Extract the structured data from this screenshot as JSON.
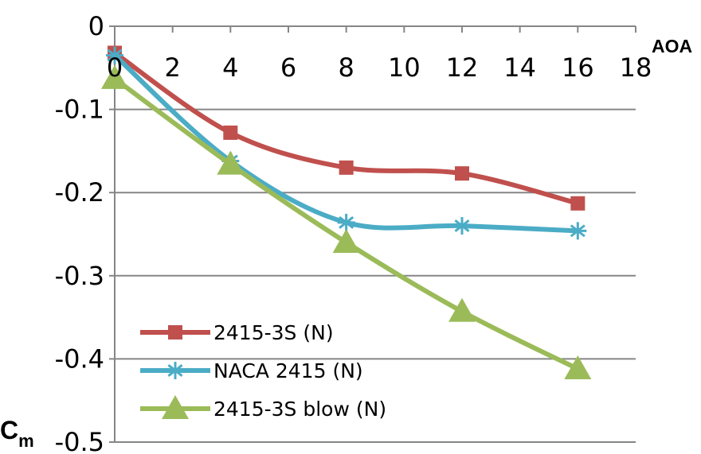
{
  "chart_data": {
    "type": "line",
    "title": "",
    "xlabel": "AOA",
    "ylabel": "C",
    "ylabel_subscript": "m",
    "xlim": [
      0,
      18
    ],
    "ylim": [
      -0.5,
      0
    ],
    "x_ticks": [
      "0",
      "2",
      "4",
      "6",
      "8",
      "10",
      "12",
      "14",
      "16",
      "18"
    ],
    "y_ticks": [
      "0",
      "-0.1",
      "-0.2",
      "-0.3",
      "-0.4",
      "-0.5"
    ],
    "grid": "horizontal",
    "legend_position": "bottom-left inside",
    "x": [
      0,
      4,
      8,
      12,
      16
    ],
    "series": [
      {
        "name": "2415-3S (N)",
        "color": "#C0504D",
        "marker": "square",
        "values": [
          -0.032,
          -0.128,
          -0.17,
          -0.177,
          -0.213
        ]
      },
      {
        "name": "NACA 2415 (N)",
        "color": "#4BACC6",
        "marker": "star",
        "values": [
          -0.035,
          -0.162,
          -0.236,
          -0.24,
          -0.246
        ]
      },
      {
        "name": "2415-3S blow (N)",
        "color": "#9BBB59",
        "marker": "triangle",
        "values": [
          -0.063,
          -0.166,
          -0.26,
          -0.343,
          -0.412
        ]
      }
    ]
  }
}
